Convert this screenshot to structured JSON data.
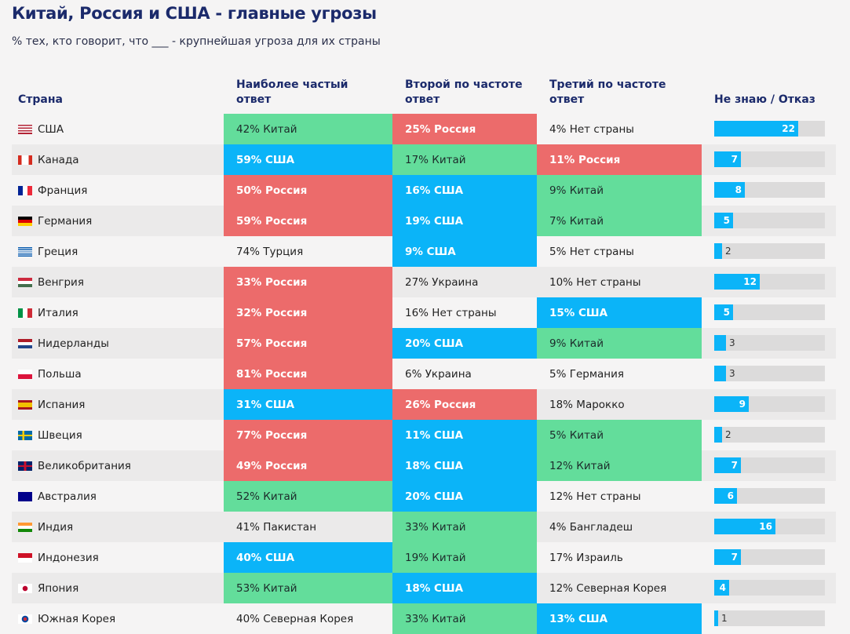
{
  "title": "Китай, Россия и США - главные угрозы",
  "subtitle": "% тех, кто говорит, что ___ - крупнейшая угроза для их страны",
  "colors": {
    "green": "#63dd9b",
    "red": "#ec6b6b",
    "blue": "#0bb4f8",
    "title": "#1b2a6b"
  },
  "chart_data": {
    "type": "table",
    "columns": [
      "Страна",
      "Наиболее частый ответ",
      "Второй по частоте ответ",
      "Третий по частоте ответ",
      "Не знаю / Отказ"
    ],
    "legend_note": "cell color: green = Китай, red = Россия, blue = США",
    "bar_max": 29,
    "rows": [
      {
        "country": "США",
        "flag": "us",
        "a1": "42% Китай",
        "k1": "g",
        "a2": "25% Россия",
        "k2": "r",
        "a3": "4% Нет страны",
        "k3": "n",
        "dk": 22
      },
      {
        "country": "Канада",
        "flag": "ca",
        "a1": "59% США",
        "k1": "b",
        "a2": "17% Китай",
        "k2": "g",
        "a3": "11% Россия",
        "k3": "r",
        "dk": 7
      },
      {
        "country": "Франция",
        "flag": "fr",
        "a1": "50% Россия",
        "k1": "r",
        "a2": "16% США",
        "k2": "b",
        "a3": "9% Китай",
        "k3": "g",
        "dk": 8
      },
      {
        "country": "Германия",
        "flag": "de",
        "a1": "59% Россия",
        "k1": "r",
        "a2": "19% США",
        "k2": "b",
        "a3": "7% Китай",
        "k3": "g",
        "dk": 5
      },
      {
        "country": "Греция",
        "flag": "gr",
        "a1": "74% Турция",
        "k1": "n",
        "a2": "9% США",
        "k2": "b",
        "a3": "5% Нет страны",
        "k3": "n",
        "dk": 2
      },
      {
        "country": "Венгрия",
        "flag": "hu",
        "a1": "33% Россия",
        "k1": "r",
        "a2": "27% Украина",
        "k2": "n",
        "a3": "10% Нет страны",
        "k3": "n",
        "dk": 12
      },
      {
        "country": "Италия",
        "flag": "it",
        "a1": "32% Россия",
        "k1": "r",
        "a2": "16% Нет страны",
        "k2": "n",
        "a3": "15% США",
        "k3": "b",
        "dk": 5
      },
      {
        "country": "Нидерланды",
        "flag": "nl",
        "a1": "57% Россия",
        "k1": "r",
        "a2": "20% США",
        "k2": "b",
        "a3": "9% Китай",
        "k3": "g",
        "dk": 3
      },
      {
        "country": "Польша",
        "flag": "pl",
        "a1": "81% Россия",
        "k1": "r",
        "a2": "6% Украина",
        "k2": "n",
        "a3": "5% Германия",
        "k3": "n",
        "dk": 3
      },
      {
        "country": "Испания",
        "flag": "es",
        "a1": "31% США",
        "k1": "b",
        "a2": "26% Россия",
        "k2": "r",
        "a3": "18% Марокко",
        "k3": "n",
        "dk": 9
      },
      {
        "country": "Швеция",
        "flag": "se",
        "a1": "77% Россия",
        "k1": "r",
        "a2": "11% США",
        "k2": "b",
        "a3": "5% Китай",
        "k3": "g",
        "dk": 2
      },
      {
        "country": "Великобритания",
        "flag": "gb",
        "a1": "49% Россия",
        "k1": "r",
        "a2": "18% США",
        "k2": "b",
        "a3": "12% Китай",
        "k3": "g",
        "dk": 7
      },
      {
        "country": "Австралия",
        "flag": "au",
        "a1": "52% Китай",
        "k1": "g",
        "a2": "20% США",
        "k2": "b",
        "a3": "12% Нет страны",
        "k3": "n",
        "dk": 6
      },
      {
        "country": "Индия",
        "flag": "in",
        "a1": "41% Пакистан",
        "k1": "n",
        "a2": "33% Китай",
        "k2": "g",
        "a3": "4% Бангладеш",
        "k3": "n",
        "dk": 16
      },
      {
        "country": "Индонезия",
        "flag": "id",
        "a1": "40% США",
        "k1": "b",
        "a2": "19% Китай",
        "k2": "g",
        "a3": "17% Израиль",
        "k3": "n",
        "dk": 7
      },
      {
        "country": "Япония",
        "flag": "jp",
        "a1": "53% Китай",
        "k1": "g",
        "a2": "18% США",
        "k2": "b",
        "a3": "12% Северная Корея",
        "k3": "n",
        "dk": 4
      },
      {
        "country": "Южная Корея",
        "flag": "kr",
        "a1": "40% Северная Корея",
        "k1": "n",
        "a2": "33% Китай",
        "k2": "g",
        "a3": "13% США",
        "k3": "b",
        "dk": 1
      }
    ]
  }
}
